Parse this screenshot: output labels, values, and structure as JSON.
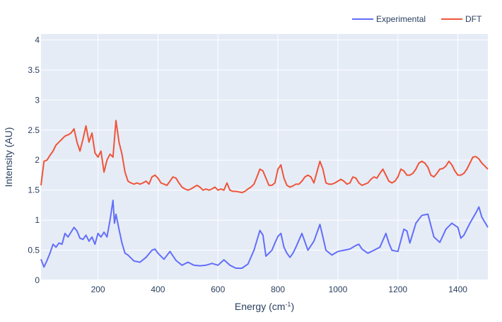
{
  "chart_data": {
    "type": "line",
    "xlabel": "Energy (cm",
    "xlabel_sup": "-1",
    "xlabel_tail": ")",
    "ylabel": "Intensity (AU)",
    "xlim": [
      10,
      1500
    ],
    "ylim": [
      0,
      4.1
    ],
    "x_ticks": [
      200,
      400,
      600,
      800,
      1000,
      1200,
      1400
    ],
    "y_ticks": [
      0,
      0.5,
      1,
      1.5,
      2,
      2.5,
      3,
      3.5,
      4
    ],
    "grid": true,
    "legend_position": "top-right",
    "colors": {
      "plot_bg": "#e5ecf6",
      "grid": "#ffffff",
      "text": "#2a3f5f"
    },
    "series": [
      {
        "name": "Experimental",
        "color": "#636efa",
        "x": [
          10,
          20,
          30,
          40,
          50,
          60,
          70,
          80,
          90,
          100,
          110,
          120,
          130,
          140,
          150,
          160,
          170,
          180,
          190,
          200,
          210,
          220,
          230,
          240,
          250,
          255,
          260,
          270,
          280,
          290,
          300,
          320,
          340,
          360,
          380,
          390,
          400,
          420,
          440,
          460,
          480,
          500,
          520,
          540,
          560,
          580,
          600,
          620,
          640,
          660,
          680,
          700,
          720,
          740,
          750,
          760,
          780,
          790,
          800,
          810,
          820,
          830,
          840,
          850,
          860,
          880,
          900,
          920,
          940,
          950,
          960,
          980,
          1000,
          1020,
          1040,
          1060,
          1070,
          1080,
          1100,
          1120,
          1140,
          1160,
          1170,
          1180,
          1200,
          1220,
          1230,
          1240,
          1260,
          1280,
          1300,
          1320,
          1340,
          1360,
          1380,
          1400,
          1410,
          1420,
          1440,
          1460,
          1470,
          1480,
          1500
        ],
        "y": [
          0.35,
          0.22,
          0.33,
          0.45,
          0.6,
          0.55,
          0.62,
          0.6,
          0.78,
          0.72,
          0.8,
          0.88,
          0.82,
          0.7,
          0.68,
          0.75,
          0.65,
          0.72,
          0.6,
          0.78,
          0.72,
          0.8,
          0.72,
          1.0,
          1.33,
          0.95,
          1.1,
          0.85,
          0.62,
          0.45,
          0.42,
          0.32,
          0.3,
          0.38,
          0.5,
          0.52,
          0.45,
          0.35,
          0.48,
          0.33,
          0.25,
          0.3,
          0.25,
          0.24,
          0.25,
          0.28,
          0.25,
          0.34,
          0.25,
          0.2,
          0.2,
          0.27,
          0.5,
          0.83,
          0.75,
          0.4,
          0.5,
          0.62,
          0.73,
          0.78,
          0.55,
          0.45,
          0.38,
          0.45,
          0.55,
          0.78,
          0.5,
          0.65,
          0.93,
          0.72,
          0.5,
          0.42,
          0.48,
          0.5,
          0.52,
          0.58,
          0.6,
          0.52,
          0.45,
          0.5,
          0.55,
          0.78,
          0.62,
          0.5,
          0.48,
          0.85,
          0.82,
          0.62,
          0.95,
          1.08,
          1.1,
          0.72,
          0.63,
          0.85,
          0.95,
          0.88,
          0.7,
          0.75,
          0.95,
          1.12,
          1.22,
          1.05,
          0.88
        ]
      },
      {
        "name": "DFT",
        "color": "#ef553b",
        "x": [
          10,
          20,
          30,
          40,
          50,
          60,
          70,
          80,
          90,
          100,
          110,
          120,
          130,
          140,
          150,
          160,
          170,
          180,
          190,
          200,
          210,
          220,
          230,
          240,
          250,
          260,
          270,
          280,
          290,
          300,
          310,
          320,
          330,
          340,
          350,
          360,
          370,
          380,
          390,
          400,
          410,
          420,
          430,
          440,
          450,
          460,
          470,
          480,
          490,
          500,
          510,
          520,
          530,
          540,
          550,
          560,
          570,
          580,
          590,
          600,
          610,
          620,
          630,
          640,
          650,
          660,
          670,
          680,
          690,
          700,
          710,
          720,
          730,
          740,
          750,
          760,
          770,
          780,
          790,
          800,
          810,
          820,
          830,
          840,
          850,
          860,
          870,
          880,
          890,
          900,
          910,
          920,
          930,
          940,
          950,
          960,
          970,
          980,
          990,
          1000,
          1010,
          1020,
          1030,
          1040,
          1050,
          1060,
          1070,
          1080,
          1090,
          1100,
          1110,
          1120,
          1130,
          1140,
          1150,
          1160,
          1170,
          1180,
          1190,
          1200,
          1210,
          1220,
          1230,
          1240,
          1250,
          1260,
          1270,
          1280,
          1290,
          1300,
          1310,
          1320,
          1330,
          1340,
          1350,
          1360,
          1370,
          1380,
          1390,
          1400,
          1410,
          1420,
          1430,
          1440,
          1450,
          1460,
          1470,
          1480,
          1490,
          1500
        ],
        "y": [
          1.58,
          1.98,
          2.0,
          2.08,
          2.15,
          2.25,
          2.3,
          2.35,
          2.4,
          2.42,
          2.45,
          2.52,
          2.3,
          2.15,
          2.35,
          2.57,
          2.3,
          2.45,
          2.12,
          2.05,
          2.15,
          1.8,
          2.0,
          2.1,
          2.05,
          2.66,
          2.3,
          2.1,
          1.8,
          1.65,
          1.62,
          1.6,
          1.62,
          1.6,
          1.62,
          1.65,
          1.6,
          1.72,
          1.75,
          1.7,
          1.62,
          1.6,
          1.58,
          1.65,
          1.72,
          1.7,
          1.62,
          1.55,
          1.52,
          1.5,
          1.52,
          1.55,
          1.58,
          1.55,
          1.5,
          1.52,
          1.5,
          1.52,
          1.55,
          1.5,
          1.52,
          1.5,
          1.62,
          1.5,
          1.48,
          1.48,
          1.47,
          1.46,
          1.48,
          1.52,
          1.55,
          1.6,
          1.72,
          1.85,
          1.82,
          1.7,
          1.58,
          1.58,
          1.62,
          1.85,
          1.92,
          1.7,
          1.58,
          1.55,
          1.57,
          1.6,
          1.6,
          1.65,
          1.72,
          1.75,
          1.72,
          1.62,
          1.8,
          1.98,
          1.85,
          1.62,
          1.6,
          1.6,
          1.62,
          1.65,
          1.68,
          1.65,
          1.6,
          1.62,
          1.72,
          1.7,
          1.62,
          1.58,
          1.6,
          1.62,
          1.68,
          1.72,
          1.7,
          1.78,
          1.85,
          1.75,
          1.65,
          1.62,
          1.65,
          1.72,
          1.85,
          1.82,
          1.75,
          1.75,
          1.78,
          1.85,
          1.95,
          1.98,
          1.95,
          1.88,
          1.75,
          1.72,
          1.78,
          1.85,
          1.86,
          1.9,
          1.98,
          1.92,
          1.82,
          1.75,
          1.75,
          1.78,
          1.85,
          1.95,
          2.05,
          2.06,
          2.02,
          1.95,
          1.9,
          1.85
        ]
      }
    ]
  }
}
